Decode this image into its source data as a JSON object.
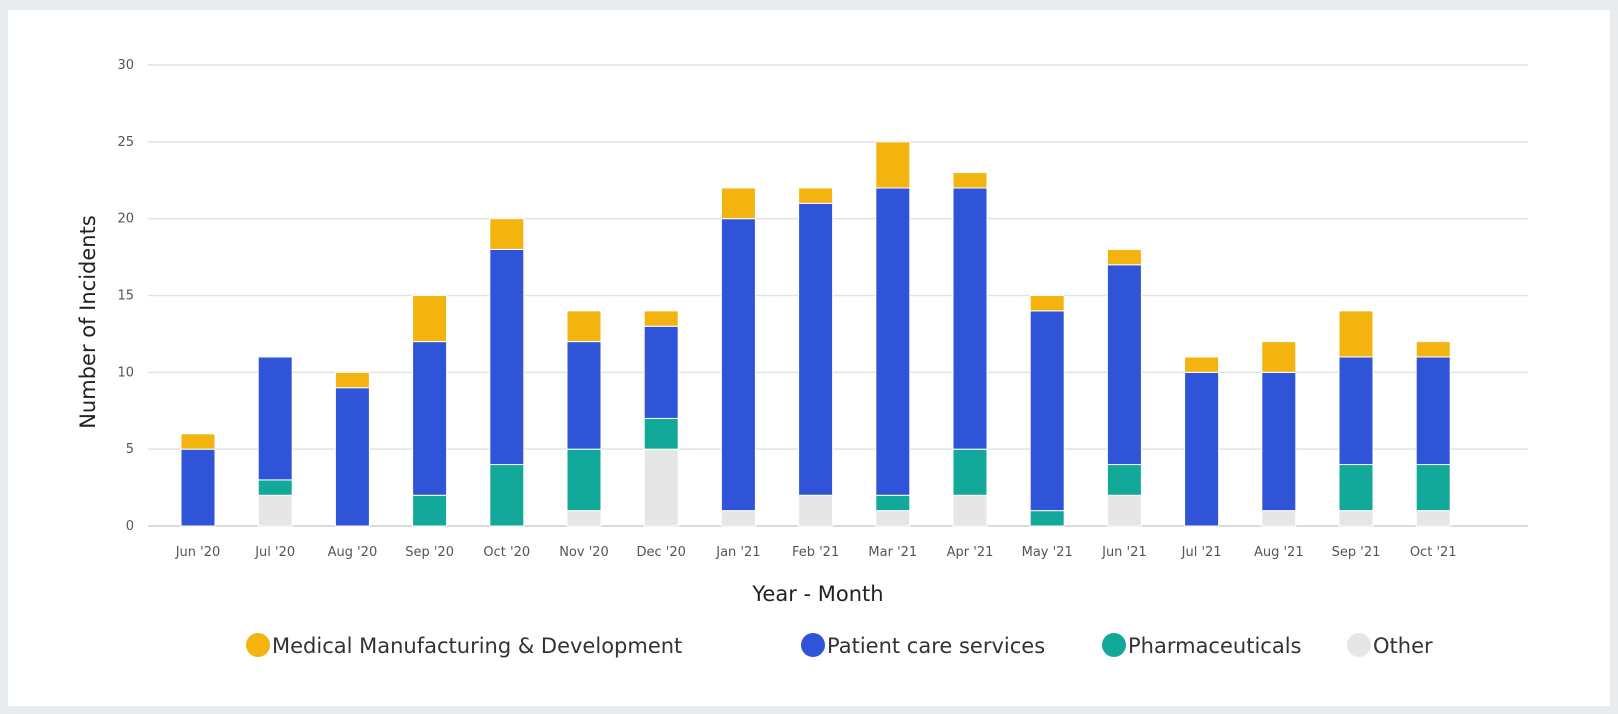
{
  "chart_data": {
    "type": "bar",
    "stacked": true,
    "title": "",
    "xlabel": "Year - Month",
    "ylabel": "Number of Incidents",
    "ylim": [
      0,
      30
    ],
    "yticks": [
      0,
      5,
      10,
      15,
      20,
      25,
      30
    ],
    "grid": true,
    "legend_position": "bottom",
    "categories": [
      "Jun '20",
      "Jul '20",
      "Aug '20",
      "Sep '20",
      "Oct '20",
      "Nov '20",
      "Dec '20",
      "Jan '21",
      "Feb '21",
      "Mar '21",
      "Apr '21",
      "May '21",
      "Jun '21",
      "Jul '21",
      "Aug '21",
      "Sep '21",
      "Oct '21"
    ],
    "series": [
      {
        "name": "Other",
        "color": "#e6e6e6",
        "values": [
          0,
          2,
          0,
          0,
          0,
          1,
          5,
          1,
          2,
          1,
          2,
          0,
          2,
          0,
          1,
          1,
          1
        ]
      },
      {
        "name": "Pharmaceuticals",
        "color": "#12a89a",
        "values": [
          0,
          1,
          0,
          2,
          4,
          4,
          2,
          0,
          0,
          1,
          3,
          1,
          2,
          0,
          0,
          3,
          3
        ]
      },
      {
        "name": "Patient care services",
        "color": "#2f54d8",
        "values": [
          5,
          8,
          9,
          10,
          14,
          7,
          6,
          19,
          19,
          20,
          17,
          13,
          13,
          10,
          9,
          7,
          7
        ]
      },
      {
        "name": "Medical Manufacturing & Development",
        "color": "#f4b40f",
        "values": [
          1,
          0,
          1,
          3,
          2,
          2,
          1,
          2,
          1,
          3,
          1,
          1,
          1,
          1,
          2,
          3,
          1
        ]
      }
    ],
    "legend": [
      {
        "name": "Medical Manufacturing & Development",
        "color": "#f4b40f"
      },
      {
        "name": "Patient care services",
        "color": "#2f54d8"
      },
      {
        "name": "Pharmaceuticals",
        "color": "#12a89a"
      },
      {
        "name": "Other",
        "color": "#e6e6e6"
      }
    ]
  }
}
